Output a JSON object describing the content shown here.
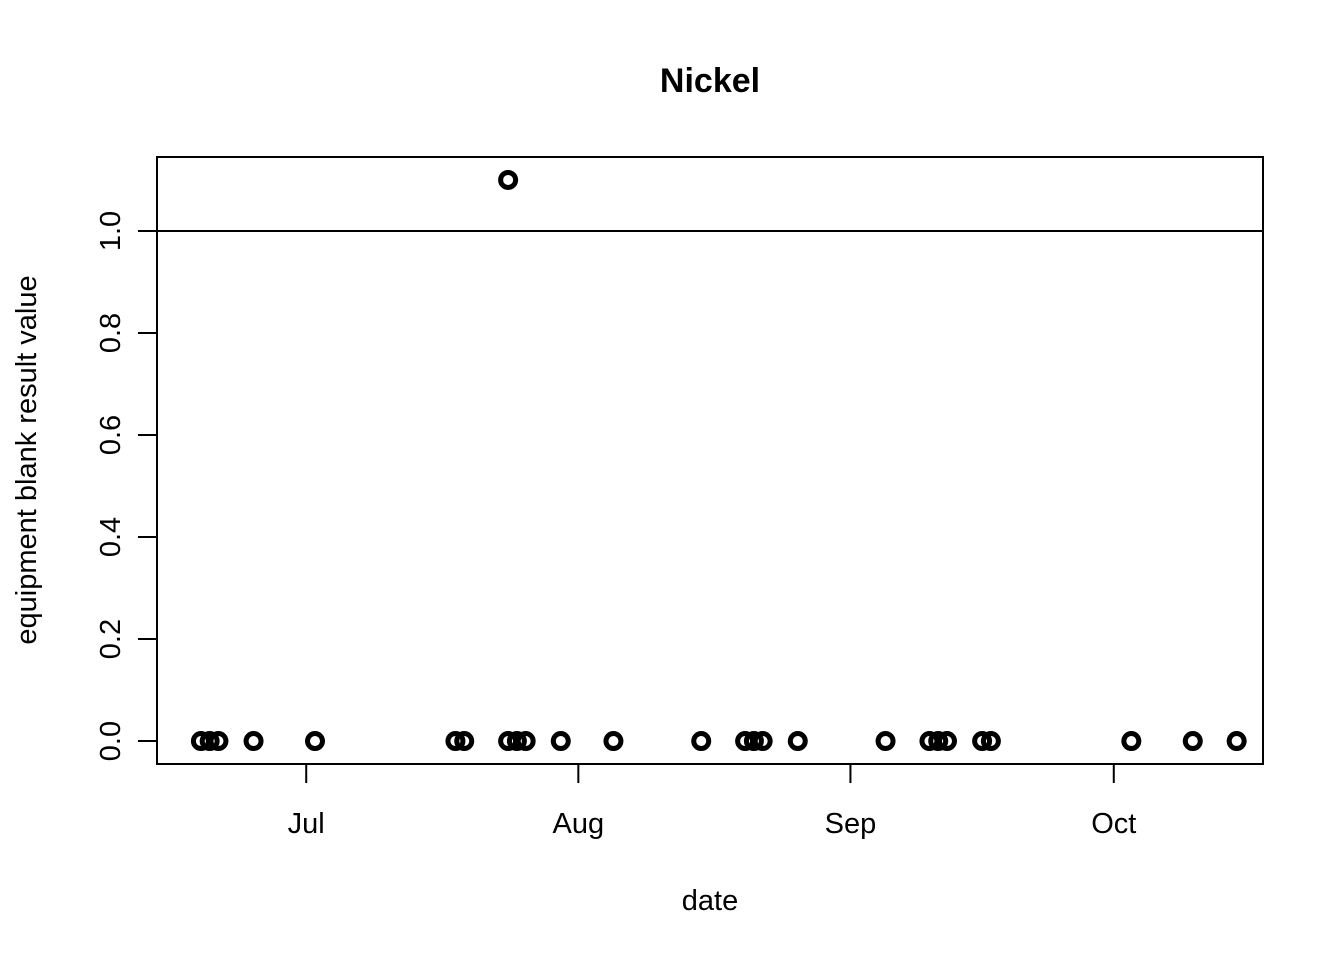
{
  "chart_data": {
    "type": "scatter",
    "title": "Nickel",
    "xlabel": "date",
    "ylabel": "equipment blank result value",
    "x_axis_type": "date",
    "xlim": [
      "2023-06-14",
      "2023-10-18"
    ],
    "ylim": [
      -0.045,
      1.145
    ],
    "x_ticks": [
      {
        "label": "Jul",
        "value": "2023-07-01"
      },
      {
        "label": "Aug",
        "value": "2023-08-01"
      },
      {
        "label": "Sep",
        "value": "2023-09-01"
      },
      {
        "label": "Oct",
        "value": "2023-10-01"
      }
    ],
    "y_ticks": [
      {
        "label": "0.0",
        "value": 0.0
      },
      {
        "label": "0.2",
        "value": 0.2
      },
      {
        "label": "0.4",
        "value": 0.4
      },
      {
        "label": "0.6",
        "value": 0.6
      },
      {
        "label": "0.8",
        "value": 0.8
      },
      {
        "label": "1.0",
        "value": 1.0
      }
    ],
    "reference_line": {
      "y": 1.0,
      "orientation": "horizontal"
    },
    "marker": "open-circle",
    "color": "#000000",
    "grid": false,
    "points": [
      {
        "x": "2023-06-19",
        "y": 0.0
      },
      {
        "x": "2023-06-20",
        "y": 0.0
      },
      {
        "x": "2023-06-21",
        "y": 0.0
      },
      {
        "x": "2023-06-25",
        "y": 0.0
      },
      {
        "x": "2023-07-02",
        "y": 0.0
      },
      {
        "x": "2023-07-18",
        "y": 0.0
      },
      {
        "x": "2023-07-19",
        "y": 0.0
      },
      {
        "x": "2023-07-24",
        "y": 1.1
      },
      {
        "x": "2023-07-24",
        "y": 0.0
      },
      {
        "x": "2023-07-25",
        "y": 0.0
      },
      {
        "x": "2023-07-26",
        "y": 0.0
      },
      {
        "x": "2023-07-30",
        "y": 0.0
      },
      {
        "x": "2023-08-05",
        "y": 0.0
      },
      {
        "x": "2023-08-15",
        "y": 0.0
      },
      {
        "x": "2023-08-20",
        "y": 0.0
      },
      {
        "x": "2023-08-21",
        "y": 0.0
      },
      {
        "x": "2023-08-22",
        "y": 0.0
      },
      {
        "x": "2023-08-26",
        "y": 0.0
      },
      {
        "x": "2023-09-05",
        "y": 0.0
      },
      {
        "x": "2023-09-10",
        "y": 0.0
      },
      {
        "x": "2023-09-11",
        "y": 0.0
      },
      {
        "x": "2023-09-12",
        "y": 0.0
      },
      {
        "x": "2023-09-16",
        "y": 0.0
      },
      {
        "x": "2023-09-17",
        "y": 0.0
      },
      {
        "x": "2023-10-03",
        "y": 0.0
      },
      {
        "x": "2023-10-10",
        "y": 0.0
      },
      {
        "x": "2023-10-15",
        "y": 0.0
      }
    ]
  }
}
